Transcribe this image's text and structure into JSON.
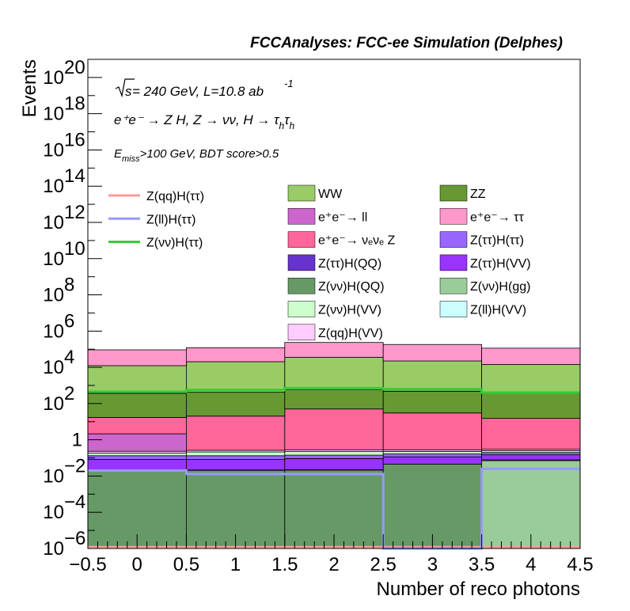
{
  "header": {
    "title": "FCCAnalyses: FCC-ee Simulation (Delphes)"
  },
  "info": {
    "sqrt_s": "s",
    "energy_lumi": " = 240 GeV, L=10.8 ab",
    "lumi_exp": "-1",
    "process": "e⁺e⁻ → Z H, Z → νν, H → τ",
    "process_sub": "h",
    "process_sub2": "h",
    "process_tau2": "τ",
    "selection_pre": "E",
    "selection_sub": "miss",
    "selection_post": ">100 GeV, BDT score>0.5"
  },
  "chart_data": {
    "type": "bar",
    "stacked": true,
    "log_y": true,
    "xlabel": "Number of reco photons",
    "ylabel": "Events",
    "xlim": [
      -0.5,
      4.5
    ],
    "ylim": [
      1e-06,
      1e+21
    ],
    "grid": false,
    "bin_edges": [
      -0.5,
      0.5,
      1.5,
      2.5,
      3.5,
      4.5
    ],
    "x_ticks": [
      "−0.5",
      "0",
      "0.5",
      "1",
      "1.5",
      "2",
      "2.5",
      "3",
      "3.5",
      "4",
      "4.5"
    ],
    "y_ticks": [
      {
        "base": "10",
        "exp": "−6",
        "value": 1e-06
      },
      {
        "base": "10",
        "exp": "−4",
        "value": 0.0001
      },
      {
        "base": "10",
        "exp": "−2",
        "value": 0.01
      },
      {
        "base": "1",
        "exp": "",
        "value": 1
      },
      {
        "base": "10",
        "exp": "2",
        "value": 100.0
      },
      {
        "base": "10",
        "exp": "4",
        "value": 10000.0
      },
      {
        "base": "10",
        "exp": "6",
        "value": 1000000.0
      },
      {
        "base": "10",
        "exp": "8",
        "value": 100000000.0
      },
      {
        "base": "10",
        "exp": "10",
        "value": 10000000000.0
      },
      {
        "base": "10",
        "exp": "12",
        "value": 1000000000000.0
      },
      {
        "base": "10",
        "exp": "14",
        "value": 100000000000000.0
      },
      {
        "base": "10",
        "exp": "16",
        "value": 1e+16
      },
      {
        "base": "10",
        "exp": "18",
        "value": 1e+18
      },
      {
        "base": "10",
        "exp": "20",
        "value": 1e+20
      }
    ],
    "stack_order_bottom_to_top": [
      "Z(νν)H(gg)",
      "Z(νν)H(QQ)",
      "Z(ττ)H(QQ)",
      "Z(ll)H(VV)",
      "Z(ττ)H(VV)",
      "Z(ττ)H(ττ)",
      "Z(νν)H(VV)",
      "Z(qq)H(VV)",
      "e⁺e⁻ → ll",
      "e⁺e⁻ → νₑνₑ Z",
      "ZZ",
      "WW",
      "e⁺e⁻ → ττ"
    ],
    "stack_series": [
      {
        "name": "Z(νν)H(gg)",
        "color": "#99cc99",
        "values": [
          0,
          0,
          0,
          0,
          0.07
        ]
      },
      {
        "name": "Z(νν)H(QQ)",
        "color": "#669966",
        "values": [
          0.022,
          0.021,
          0.022,
          0.045,
          0.008
        ]
      },
      {
        "name": "Z(ττ)H(QQ)",
        "color": "#6633cc",
        "values": [
          0,
          0,
          0.0001,
          0,
          0
        ]
      },
      {
        "name": "Z(ll)H(VV)",
        "color": "#ccffff",
        "values": [
          0,
          0.0006,
          0,
          0,
          0
        ]
      },
      {
        "name": "Z(ττ)H(VV)",
        "color": "#9933ff",
        "values": [
          0.06,
          0.06,
          0.07,
          0.07,
          0.07
        ]
      },
      {
        "name": "Z(ττ)H(ττ)",
        "color": "#9966ff",
        "values": [
          0.05,
          0.05,
          0.05,
          0.05,
          0.05
        ]
      },
      {
        "name": "Z(νν)H(VV)",
        "color": "#ccffcc",
        "values": [
          0.05,
          0.08,
          0.08,
          0.06,
          0.05
        ]
      },
      {
        "name": "Z(qq)H(VV)",
        "color": "#ffccff",
        "values": [
          0.05,
          0.05,
          0.05,
          0.05,
          0.05
        ]
      },
      {
        "name": "e⁺e⁻ → ll",
        "color": "#cc66cc",
        "values": [
          1.9,
          0,
          0,
          0,
          0
        ]
      },
      {
        "name": "e⁺e⁻ → νₑνₑ Z",
        "color": "#ff6699",
        "values": [
          15,
          20,
          50,
          30,
          15
        ]
      },
      {
        "name": "ZZ",
        "color": "#669933",
        "values": [
          350,
          400,
          550,
          450,
          350
        ]
      },
      {
        "name": "WW",
        "color": "#99cc66",
        "values": [
          12000,
          20000,
          35000,
          22000,
          14000
        ]
      },
      {
        "name": "e⁺e⁻ → ττ",
        "color": "#ff99cc",
        "values": [
          80000,
          100000,
          200000,
          160000,
          100000
        ]
      }
    ],
    "signal_lines": [
      {
        "name": "Z(qq)H(ττ)",
        "color": "#ff9999",
        "values": [
          1.2e-06,
          1.2e-06,
          1.2e-06,
          1.2e-06,
          1.2e-06
        ]
      },
      {
        "name": "Z(ll)H(ττ)",
        "color": "#9999ff",
        "values": [
          0.02,
          0.013,
          0.013,
          1e-06,
          0.025
        ]
      },
      {
        "name": "Z(νν)H(ττ)",
        "color": "#33cc33",
        "values": [
          450,
          560,
          700,
          620,
          400
        ]
      }
    ],
    "legend": {
      "col1": [
        {
          "label": "Z(qq)H(ττ)",
          "color": "#ff9999",
          "kind": "line"
        },
        {
          "label": "Z(ll)H(ττ)",
          "color": "#9999ff",
          "kind": "line"
        },
        {
          "label": "Z(νν)H(ττ)",
          "color": "#33cc33",
          "kind": "line"
        }
      ],
      "col2": [
        {
          "label": "WW",
          "color": "#99cc66",
          "kind": "box"
        },
        {
          "label": "e⁺e⁻→ ll",
          "color": "#cc66cc",
          "kind": "box"
        },
        {
          "label": "e⁺e⁻→ νₑνₑ Z",
          "color": "#ff6699",
          "kind": "box"
        },
        {
          "label": "Z(ττ)H(QQ)",
          "color": "#6633cc",
          "kind": "box"
        },
        {
          "label": "Z(νν)H(QQ)",
          "color": "#669966",
          "kind": "box"
        },
        {
          "label": "Z(νν)H(VV)",
          "color": "#ccffcc",
          "kind": "box"
        },
        {
          "label": "Z(qq)H(VV)",
          "color": "#ffccff",
          "kind": "box"
        }
      ],
      "col3": [
        {
          "label": "ZZ",
          "color": "#669933",
          "kind": "box"
        },
        {
          "label": "e⁺e⁻→ ττ",
          "color": "#ff99cc",
          "kind": "box"
        },
        {
          "label": "Z(ττ)H(ττ)",
          "color": "#9966ff",
          "kind": "box"
        },
        {
          "label": "Z(ττ)H(VV)",
          "color": "#9933ff",
          "kind": "box"
        },
        {
          "label": "Z(νν)H(gg)",
          "color": "#99cc99",
          "kind": "box"
        },
        {
          "label": "Z(ll)H(VV)",
          "color": "#ccffff",
          "kind": "box"
        }
      ]
    }
  }
}
